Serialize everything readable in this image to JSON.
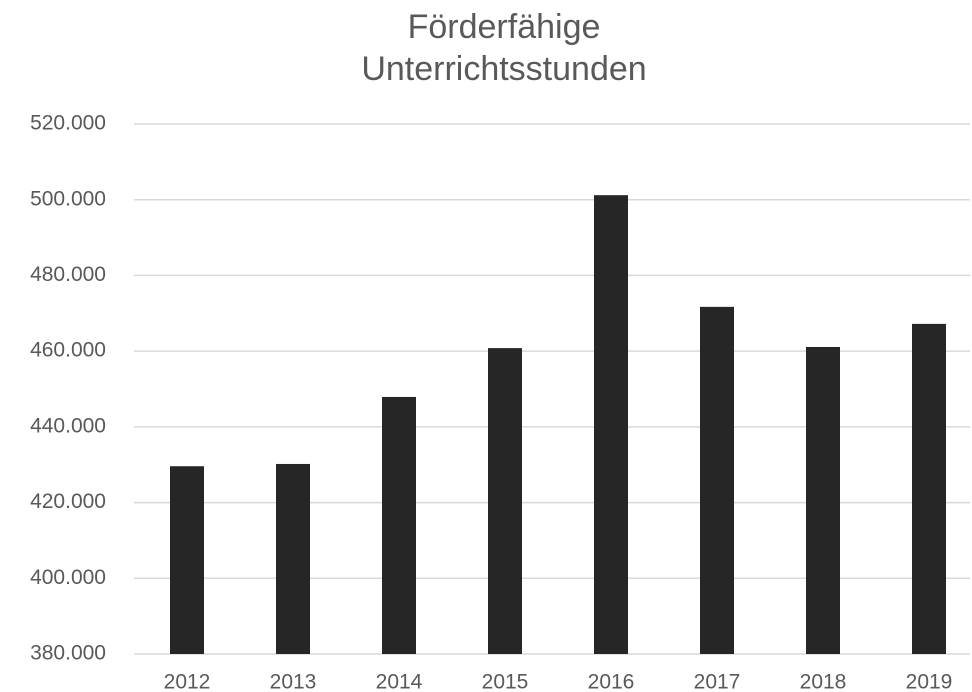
{
  "chart_data": {
    "type": "bar",
    "title": "Förderfähige Unterrichtsstunden",
    "categories": [
      "2012",
      "2013",
      "2014",
      "2015",
      "2016",
      "2017",
      "2018",
      "2019"
    ],
    "values": [
      429600,
      430200,
      447900,
      460800,
      501200,
      471700,
      461100,
      467200
    ],
    "color": "#262626",
    "ylim": [
      380000,
      520000
    ],
    "yticks": [
      {
        "value": 380000,
        "label": "380.000"
      },
      {
        "value": 400000,
        "label": "400.000"
      },
      {
        "value": 420000,
        "label": "420.000"
      },
      {
        "value": 440000,
        "label": "440.000"
      },
      {
        "value": 460000,
        "label": "460.000"
      },
      {
        "value": 480000,
        "label": "480.000"
      },
      {
        "value": 500000,
        "label": "500.000"
      },
      {
        "value": 520000,
        "label": "520.000"
      }
    ],
    "grid": true
  }
}
